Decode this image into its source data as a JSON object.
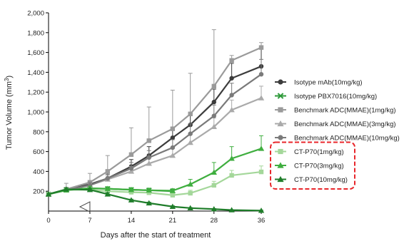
{
  "chart_data": {
    "type": "line",
    "xlabel": "Days after the start of treatment",
    "ylabel": "Tumor Volume (mm",
    "ylabel_sup": "3",
    "ylabel_close": ")",
    "xlim": [
      0,
      36
    ],
    "ylim": [
      0,
      2000
    ],
    "xticks": [
      0,
      7,
      14,
      21,
      28,
      36
    ],
    "yticks": [
      200,
      400,
      600,
      800,
      1000,
      1200,
      1400,
      1600,
      1800,
      2000
    ],
    "ytick_labels": [
      "200",
      "400",
      "600",
      "800",
      "1,000",
      "1,200",
      "1,400",
      "1,600",
      "1,800",
      "2,000"
    ],
    "grid": false,
    "legend_position": "right",
    "highlight_box_color": "#e8262b",
    "series": [
      {
        "name": "Isotype mAb(10mg/kg)",
        "color": "#3c3c3c",
        "marker": "circle",
        "x": [
          0,
          3,
          7,
          10,
          14,
          17,
          21,
          24,
          28,
          31,
          36
        ],
        "y": [
          170,
          215,
          270,
          330,
          450,
          560,
          740,
          870,
          1100,
          1340,
          1460
        ],
        "err": [
          15,
          20,
          30,
          50,
          70,
          90,
          100,
          110,
          130,
          150,
          180
        ]
      },
      {
        "name": "Isotype PBX7016(10mg/kg)",
        "color": "#2e9a3a",
        "marker": "x",
        "x": [
          0,
          3,
          7,
          10,
          14,
          17,
          21
        ],
        "y": [
          170,
          215,
          230,
          225,
          215,
          210,
          200
        ],
        "err": [
          10,
          15,
          20,
          20,
          20,
          20,
          20
        ]
      },
      {
        "name": "Benchmark ADC(MMAE)(1mg/kg)",
        "color": "#9a9a9a",
        "marker": "square",
        "x": [
          0,
          3,
          7,
          10,
          14,
          17,
          21,
          24,
          28,
          31,
          36
        ],
        "y": [
          170,
          220,
          290,
          400,
          570,
          710,
          830,
          980,
          1260,
          1520,
          1650
        ],
        "err": [
          15,
          60,
          90,
          160,
          270,
          340,
          390,
          410,
          570,
          50,
          50
        ]
      },
      {
        "name": "Benchmark ADC(MMAE)(3mg/kg)",
        "color": "#aaaaaa",
        "marker": "triangle",
        "x": [
          0,
          3,
          7,
          10,
          14,
          17,
          21,
          24,
          28,
          31,
          36
        ],
        "y": [
          170,
          210,
          260,
          320,
          400,
          480,
          560,
          690,
          850,
          1020,
          1140
        ],
        "err": [
          15,
          20,
          30,
          40,
          50,
          60,
          70,
          80,
          90,
          100,
          120
        ]
      },
      {
        "name": "Benchmark ADC(MMAE)(10mg/kg)",
        "color": "#7a7a7a",
        "marker": "circle",
        "x": [
          0,
          3,
          7,
          10,
          14,
          17,
          21,
          24,
          28,
          31,
          36
        ],
        "y": [
          170,
          210,
          260,
          330,
          430,
          540,
          640,
          780,
          960,
          1170,
          1380
        ],
        "err": [
          15,
          20,
          30,
          40,
          60,
          70,
          80,
          100,
          110,
          120,
          150
        ]
      },
      {
        "name": "CT-P70(1mg/kg)",
        "color": "#a4d79a",
        "marker": "square",
        "x": [
          0,
          3,
          7,
          10,
          14,
          17,
          21,
          24,
          28,
          31,
          36
        ],
        "y": [
          170,
          215,
          215,
          200,
          190,
          185,
          160,
          180,
          260,
          360,
          395
        ],
        "err": [
          10,
          15,
          20,
          20,
          20,
          20,
          20,
          30,
          40,
          50,
          60
        ]
      },
      {
        "name": "CT-P70(3mg/kg)",
        "color": "#3fae3f",
        "marker": "triangle",
        "x": [
          0,
          3,
          7,
          10,
          14,
          17,
          21,
          24,
          28,
          31,
          36
        ],
        "y": [
          170,
          210,
          230,
          225,
          215,
          210,
          205,
          270,
          390,
          530,
          630
        ],
        "err": [
          10,
          15,
          20,
          20,
          20,
          20,
          20,
          50,
          100,
          120,
          130
        ]
      },
      {
        "name": "CT-P70(10mg/kg)",
        "color": "#1f7d2a",
        "marker": "triangle",
        "x": [
          0,
          3,
          7,
          10,
          14,
          17,
          21,
          24,
          28,
          31,
          36
        ],
        "y": [
          170,
          220,
          215,
          170,
          110,
          80,
          45,
          30,
          20,
          10,
          5
        ],
        "err": [
          10,
          15,
          15,
          15,
          10,
          10,
          8,
          6,
          5,
          4,
          3
        ]
      }
    ],
    "annotations": [
      {
        "type": "dosing-arrow",
        "x": 7,
        "y": 50,
        "color": "#444444"
      }
    ]
  }
}
